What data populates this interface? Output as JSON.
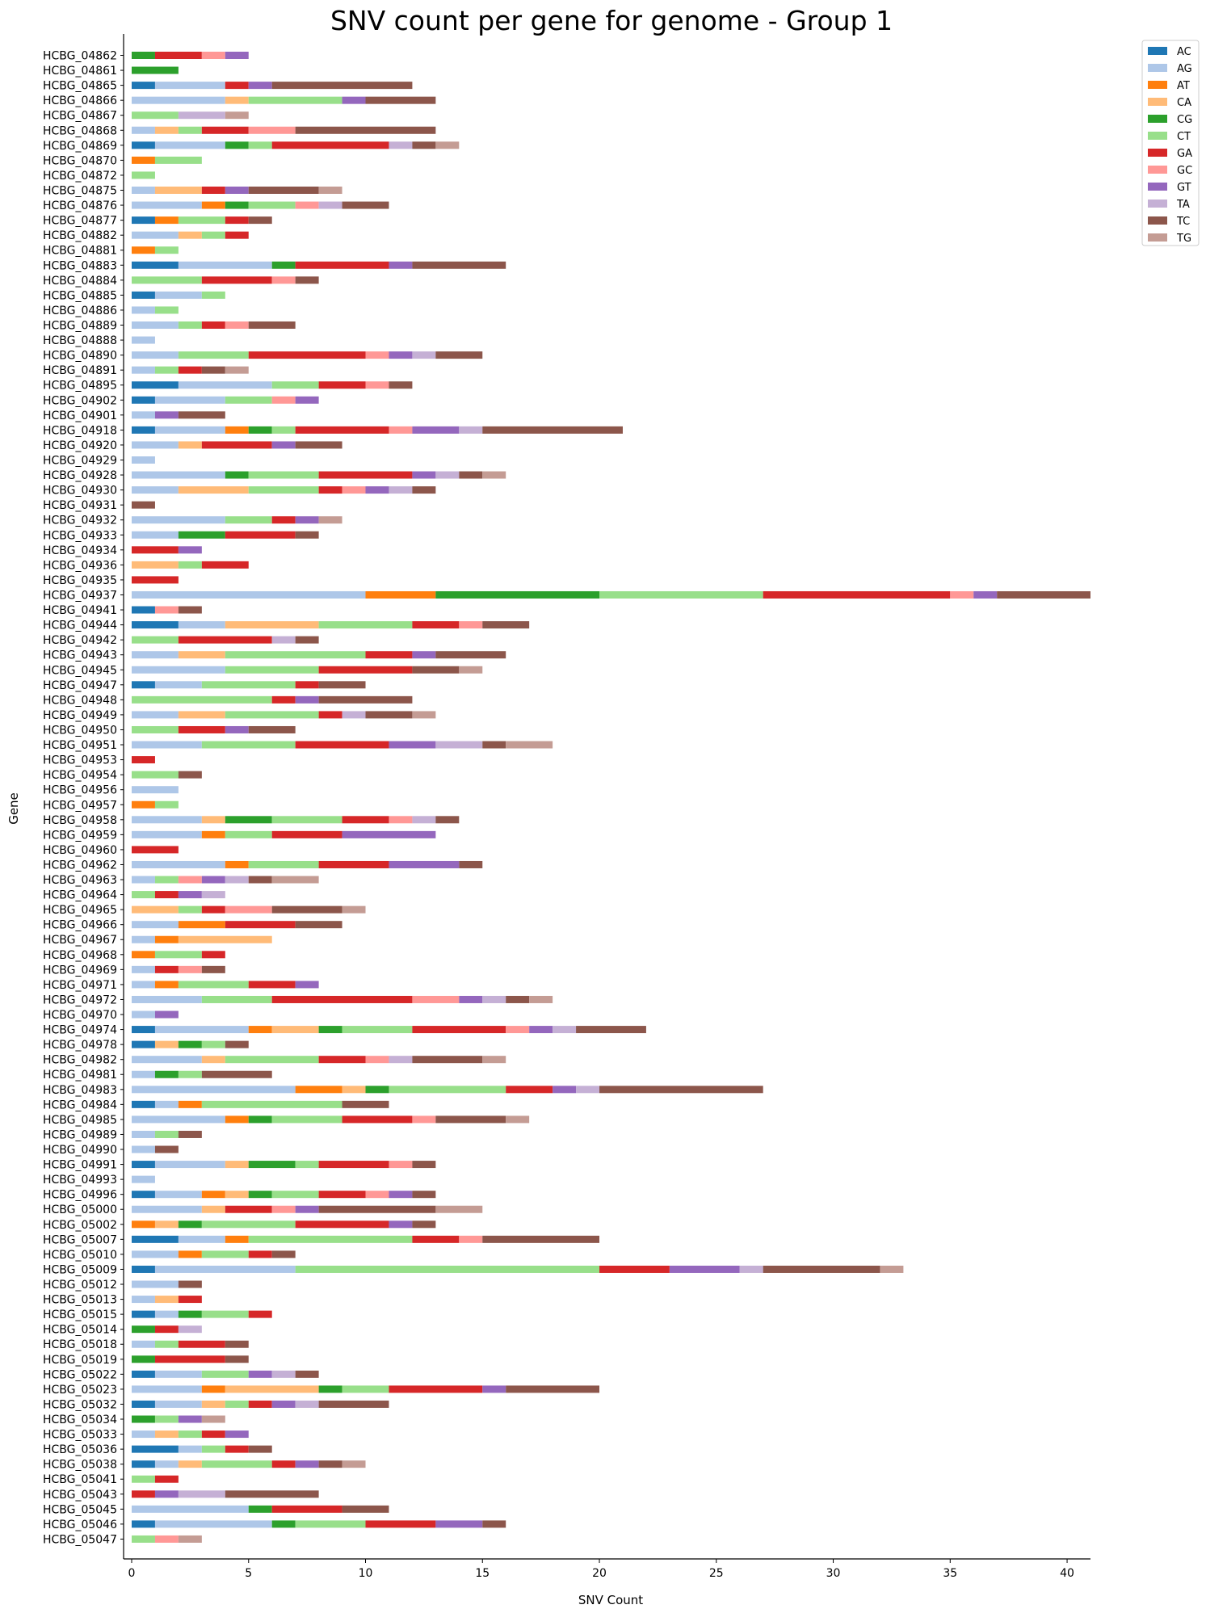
{
  "chart_data": {
    "type": "bar",
    "orientation": "horizontal",
    "stacked": true,
    "title": "SNV count per gene for genome - Group 1",
    "xlabel": "SNV Count",
    "ylabel": "Gene",
    "xlim": [
      0,
      41
    ],
    "xticks": [
      0,
      5,
      10,
      15,
      20,
      25,
      30,
      35,
      40
    ],
    "grid": false,
    "legend_position": "top-right outside",
    "series_names": [
      "AC",
      "AG",
      "AT",
      "CA",
      "CG",
      "CT",
      "GA",
      "GC",
      "GT",
      "TA",
      "TC",
      "TG"
    ],
    "colors": {
      "AC": "#1f77b4",
      "AG": "#aec7e8",
      "AT": "#ff7f0e",
      "CA": "#ffbb78",
      "CG": "#2ca02c",
      "CT": "#98df8a",
      "GA": "#d62728",
      "GC": "#ff9896",
      "GT": "#9467bd",
      "TA": "#c5b0d5",
      "TC": "#8c564b",
      "TG": "#c49c94"
    },
    "genes": [
      {
        "name": "HCBG_04862",
        "counts": {
          "CG": 1,
          "GA": 2,
          "GC": 1,
          "GT": 1
        }
      },
      {
        "name": "HCBG_04861",
        "counts": {
          "CG": 2
        }
      },
      {
        "name": "HCBG_04865",
        "counts": {
          "AC": 1,
          "AG": 3,
          "GA": 1,
          "GT": 1,
          "TC": 6
        }
      },
      {
        "name": "HCBG_04866",
        "counts": {
          "AG": 4,
          "CA": 1,
          "CT": 4,
          "GT": 1,
          "TC": 3
        }
      },
      {
        "name": "HCBG_04867",
        "counts": {
          "CT": 2,
          "TA": 2,
          "TG": 1
        }
      },
      {
        "name": "HCBG_04868",
        "counts": {
          "AG": 1,
          "CA": 1,
          "CT": 1,
          "GA": 2,
          "GC": 2,
          "TC": 6
        }
      },
      {
        "name": "HCBG_04869",
        "counts": {
          "AC": 1,
          "AG": 3,
          "CG": 1,
          "CT": 1,
          "GA": 5,
          "TA": 1,
          "TC": 1,
          "TG": 1
        }
      },
      {
        "name": "HCBG_04870",
        "counts": {
          "AT": 1,
          "CT": 2
        }
      },
      {
        "name": "HCBG_04872",
        "counts": {
          "CT": 1
        }
      },
      {
        "name": "HCBG_04875",
        "counts": {
          "AG": 1,
          "CA": 2,
          "GA": 1,
          "GT": 1,
          "TC": 3,
          "TG": 1
        }
      },
      {
        "name": "HCBG_04876",
        "counts": {
          "AG": 3,
          "AT": 1,
          "CG": 1,
          "CT": 2,
          "GC": 1,
          "TA": 1,
          "TC": 2
        }
      },
      {
        "name": "HCBG_04877",
        "counts": {
          "AC": 1,
          "AT": 1,
          "CT": 2,
          "GA": 1,
          "TC": 1
        }
      },
      {
        "name": "HCBG_04882",
        "counts": {
          "AG": 2,
          "CA": 1,
          "CT": 1,
          "GA": 1
        }
      },
      {
        "name": "HCBG_04881",
        "counts": {
          "AT": 1,
          "CT": 1
        }
      },
      {
        "name": "HCBG_04883",
        "counts": {
          "AC": 2,
          "AG": 4,
          "CG": 1,
          "GA": 4,
          "GT": 1,
          "TC": 4
        }
      },
      {
        "name": "HCBG_04884",
        "counts": {
          "CT": 3,
          "GA": 3,
          "GC": 1,
          "TC": 1
        }
      },
      {
        "name": "HCBG_04885",
        "counts": {
          "AC": 1,
          "AG": 2,
          "CT": 1
        }
      },
      {
        "name": "HCBG_04886",
        "counts": {
          "AG": 1,
          "CT": 1
        }
      },
      {
        "name": "HCBG_04889",
        "counts": {
          "AG": 2,
          "CT": 1,
          "GA": 1,
          "GC": 1,
          "TC": 2
        }
      },
      {
        "name": "HCBG_04888",
        "counts": {
          "AG": 1
        }
      },
      {
        "name": "HCBG_04890",
        "counts": {
          "AG": 2,
          "CT": 3,
          "GA": 5,
          "GC": 1,
          "GT": 1,
          "TA": 1,
          "TC": 2
        }
      },
      {
        "name": "HCBG_04891",
        "counts": {
          "AG": 1,
          "CT": 1,
          "GA": 1,
          "TC": 1,
          "TG": 1
        }
      },
      {
        "name": "HCBG_04895",
        "counts": {
          "AC": 2,
          "AG": 4,
          "CT": 2,
          "GA": 2,
          "GC": 1,
          "TC": 1
        }
      },
      {
        "name": "HCBG_04902",
        "counts": {
          "AC": 1,
          "AG": 3,
          "CT": 2,
          "GC": 1,
          "GT": 1
        }
      },
      {
        "name": "HCBG_04901",
        "counts": {
          "AG": 1,
          "GT": 1,
          "TC": 2
        }
      },
      {
        "name": "HCBG_04918",
        "counts": {
          "AC": 1,
          "AG": 3,
          "AT": 1,
          "CG": 1,
          "CT": 1,
          "GA": 4,
          "GC": 1,
          "GT": 2,
          "TA": 1,
          "TC": 6
        }
      },
      {
        "name": "HCBG_04920",
        "counts": {
          "AG": 2,
          "CA": 1,
          "GA": 3,
          "GT": 1,
          "TC": 2
        }
      },
      {
        "name": "HCBG_04929",
        "counts": {
          "AG": 1
        }
      },
      {
        "name": "HCBG_04928",
        "counts": {
          "AG": 4,
          "CG": 1,
          "CT": 3,
          "GA": 4,
          "GT": 1,
          "TA": 1,
          "TC": 1,
          "TG": 1
        }
      },
      {
        "name": "HCBG_04930",
        "counts": {
          "AG": 2,
          "CA": 3,
          "CT": 3,
          "GA": 1,
          "GC": 1,
          "GT": 1,
          "TA": 1,
          "TC": 1
        }
      },
      {
        "name": "HCBG_04931",
        "counts": {
          "TC": 1
        }
      },
      {
        "name": "HCBG_04932",
        "counts": {
          "AG": 4,
          "CT": 2,
          "GA": 1,
          "GT": 1,
          "TG": 1
        }
      },
      {
        "name": "HCBG_04933",
        "counts": {
          "AG": 2,
          "CG": 2,
          "GA": 3,
          "TC": 1
        }
      },
      {
        "name": "HCBG_04934",
        "counts": {
          "GA": 2,
          "GT": 1
        }
      },
      {
        "name": "HCBG_04936",
        "counts": {
          "CA": 2,
          "CT": 1,
          "GA": 2
        }
      },
      {
        "name": "HCBG_04935",
        "counts": {
          "GA": 2
        }
      },
      {
        "name": "HCBG_04937",
        "counts": {
          "AG": 10,
          "AT": 3,
          "CG": 7,
          "CT": 7,
          "GA": 8,
          "GC": 1,
          "GT": 1,
          "TC": 4
        }
      },
      {
        "name": "HCBG_04941",
        "counts": {
          "AC": 1,
          "GC": 1,
          "TC": 1
        }
      },
      {
        "name": "HCBG_04944",
        "counts": {
          "AC": 2,
          "AG": 2,
          "CA": 4,
          "CT": 4,
          "GA": 2,
          "GC": 1,
          "TC": 2
        }
      },
      {
        "name": "HCBG_04942",
        "counts": {
          "CT": 2,
          "GA": 4,
          "TA": 1,
          "TC": 1
        }
      },
      {
        "name": "HCBG_04943",
        "counts": {
          "AG": 2,
          "CA": 2,
          "CT": 6,
          "GA": 2,
          "GT": 1,
          "TC": 3
        }
      },
      {
        "name": "HCBG_04945",
        "counts": {
          "AG": 4,
          "CT": 4,
          "GA": 4,
          "TC": 2,
          "TG": 1
        }
      },
      {
        "name": "HCBG_04947",
        "counts": {
          "AC": 1,
          "AG": 2,
          "CT": 4,
          "GA": 1,
          "TC": 2
        }
      },
      {
        "name": "HCBG_04948",
        "counts": {
          "CT": 6,
          "GA": 1,
          "GT": 1,
          "TC": 4
        }
      },
      {
        "name": "HCBG_04949",
        "counts": {
          "AG": 2,
          "CA": 2,
          "CT": 4,
          "GA": 1,
          "TA": 1,
          "TC": 2,
          "TG": 1
        }
      },
      {
        "name": "HCBG_04950",
        "counts": {
          "CT": 2,
          "GA": 2,
          "GT": 1,
          "TC": 2
        }
      },
      {
        "name": "HCBG_04951",
        "counts": {
          "AG": 3,
          "CT": 4,
          "GA": 4,
          "GT": 2,
          "TA": 2,
          "TC": 1,
          "TG": 2
        }
      },
      {
        "name": "HCBG_04953",
        "counts": {
          "GA": 1
        }
      },
      {
        "name": "HCBG_04954",
        "counts": {
          "CT": 2,
          "TC": 1
        }
      },
      {
        "name": "HCBG_04956",
        "counts": {
          "AG": 2
        }
      },
      {
        "name": "HCBG_04957",
        "counts": {
          "AT": 1,
          "CT": 1
        }
      },
      {
        "name": "HCBG_04958",
        "counts": {
          "AG": 3,
          "CA": 1,
          "CG": 2,
          "CT": 3,
          "GA": 2,
          "GC": 1,
          "TA": 1,
          "TC": 1
        }
      },
      {
        "name": "HCBG_04959",
        "counts": {
          "AG": 3,
          "AT": 1,
          "CT": 2,
          "GA": 3,
          "GT": 4
        }
      },
      {
        "name": "HCBG_04960",
        "counts": {
          "GA": 2
        }
      },
      {
        "name": "HCBG_04962",
        "counts": {
          "AG": 4,
          "AT": 1,
          "CT": 3,
          "GA": 3,
          "GT": 3,
          "TC": 1
        }
      },
      {
        "name": "HCBG_04963",
        "counts": {
          "AG": 1,
          "CT": 1,
          "GC": 1,
          "GT": 1,
          "TA": 1,
          "TC": 1,
          "TG": 2
        }
      },
      {
        "name": "HCBG_04964",
        "counts": {
          "CT": 1,
          "GA": 1,
          "GT": 1,
          "TA": 1
        }
      },
      {
        "name": "HCBG_04965",
        "counts": {
          "CA": 2,
          "CT": 1,
          "GA": 1,
          "GC": 2,
          "TC": 3,
          "TG": 1
        }
      },
      {
        "name": "HCBG_04966",
        "counts": {
          "AG": 2,
          "AT": 2,
          "GA": 3,
          "TC": 2
        }
      },
      {
        "name": "HCBG_04967",
        "counts": {
          "AG": 1,
          "AT": 1,
          "CA": 4
        }
      },
      {
        "name": "HCBG_04968",
        "counts": {
          "AT": 1,
          "CT": 2,
          "GA": 1
        }
      },
      {
        "name": "HCBG_04969",
        "counts": {
          "AG": 1,
          "GA": 1,
          "GC": 1,
          "TC": 1
        }
      },
      {
        "name": "HCBG_04971",
        "counts": {
          "AG": 1,
          "AT": 1,
          "CT": 3,
          "GA": 2,
          "GT": 1
        }
      },
      {
        "name": "HCBG_04972",
        "counts": {
          "AG": 3,
          "CT": 3,
          "GA": 6,
          "GC": 2,
          "GT": 1,
          "TA": 1,
          "TC": 1,
          "TG": 1
        }
      },
      {
        "name": "HCBG_04970",
        "counts": {
          "AG": 1,
          "GT": 1
        }
      },
      {
        "name": "HCBG_04974",
        "counts": {
          "AC": 1,
          "AG": 4,
          "AT": 1,
          "CA": 2,
          "CG": 1,
          "CT": 3,
          "GA": 4,
          "GC": 1,
          "GT": 1,
          "TA": 1,
          "TC": 3
        }
      },
      {
        "name": "HCBG_04978",
        "counts": {
          "AC": 1,
          "CA": 1,
          "CG": 1,
          "CT": 1,
          "TC": 1
        }
      },
      {
        "name": "HCBG_04982",
        "counts": {
          "AG": 3,
          "CA": 1,
          "CT": 4,
          "GA": 2,
          "GC": 1,
          "TA": 1,
          "TC": 3,
          "TG": 1
        }
      },
      {
        "name": "HCBG_04981",
        "counts": {
          "AG": 1,
          "CG": 1,
          "CT": 1,
          "TC": 3
        }
      },
      {
        "name": "HCBG_04983",
        "counts": {
          "AG": 7,
          "AT": 2,
          "CA": 1,
          "CG": 1,
          "CT": 5,
          "GA": 2,
          "GT": 1,
          "TA": 1,
          "TC": 7
        }
      },
      {
        "name": "HCBG_04984",
        "counts": {
          "AC": 1,
          "AG": 1,
          "AT": 1,
          "CT": 6,
          "TC": 2
        }
      },
      {
        "name": "HCBG_04985",
        "counts": {
          "AG": 4,
          "AT": 1,
          "CG": 1,
          "CT": 3,
          "GA": 3,
          "GC": 1,
          "TC": 3,
          "TG": 1
        }
      },
      {
        "name": "HCBG_04989",
        "counts": {
          "AG": 1,
          "CT": 1,
          "TC": 1
        }
      },
      {
        "name": "HCBG_04990",
        "counts": {
          "AG": 1,
          "TC": 1
        }
      },
      {
        "name": "HCBG_04991",
        "counts": {
          "AC": 1,
          "AG": 3,
          "CA": 1,
          "CG": 2,
          "CT": 1,
          "GA": 3,
          "GC": 1,
          "TC": 1
        }
      },
      {
        "name": "HCBG_04993",
        "counts": {
          "AG": 1
        }
      },
      {
        "name": "HCBG_04996",
        "counts": {
          "AC": 1,
          "AG": 2,
          "AT": 1,
          "CA": 1,
          "CG": 1,
          "CT": 2,
          "GA": 2,
          "GC": 1,
          "GT": 1,
          "TC": 1
        }
      },
      {
        "name": "HCBG_05000",
        "counts": {
          "AG": 3,
          "CA": 1,
          "GA": 2,
          "GC": 1,
          "GT": 1,
          "TC": 5,
          "TG": 2
        }
      },
      {
        "name": "HCBG_05002",
        "counts": {
          "AT": 1,
          "CA": 1,
          "CG": 1,
          "CT": 4,
          "GA": 4,
          "GT": 1,
          "TC": 1
        }
      },
      {
        "name": "HCBG_05007",
        "counts": {
          "AC": 2,
          "AG": 2,
          "AT": 1,
          "CT": 7,
          "GA": 2,
          "GC": 1,
          "TC": 5
        }
      },
      {
        "name": "HCBG_05010",
        "counts": {
          "AG": 2,
          "AT": 1,
          "CT": 2,
          "GA": 1,
          "TC": 1
        }
      },
      {
        "name": "HCBG_05009",
        "counts": {
          "AC": 1,
          "AG": 6,
          "CT": 13,
          "GA": 3,
          "GT": 3,
          "TA": 1,
          "TC": 5,
          "TG": 1
        }
      },
      {
        "name": "HCBG_05012",
        "counts": {
          "AG": 2,
          "TC": 1
        }
      },
      {
        "name": "HCBG_05013",
        "counts": {
          "AG": 1,
          "CA": 1,
          "GA": 1
        }
      },
      {
        "name": "HCBG_05015",
        "counts": {
          "AC": 1,
          "AG": 1,
          "CG": 1,
          "CT": 2,
          "GA": 1
        }
      },
      {
        "name": "HCBG_05014",
        "counts": {
          "CG": 1,
          "GA": 1,
          "TA": 1
        }
      },
      {
        "name": "HCBG_05018",
        "counts": {
          "AG": 1,
          "CT": 1,
          "GA": 2,
          "TC": 1
        }
      },
      {
        "name": "HCBG_05019",
        "counts": {
          "CG": 1,
          "GA": 3,
          "TC": 1
        }
      },
      {
        "name": "HCBG_05022",
        "counts": {
          "AC": 1,
          "AG": 2,
          "CT": 2,
          "GT": 1,
          "TA": 1,
          "TC": 1
        }
      },
      {
        "name": "HCBG_05023",
        "counts": {
          "AG": 3,
          "AT": 1,
          "CA": 4,
          "CG": 1,
          "CT": 2,
          "GA": 4,
          "GT": 1,
          "TC": 4
        }
      },
      {
        "name": "HCBG_05032",
        "counts": {
          "AC": 1,
          "AG": 2,
          "CA": 1,
          "CT": 1,
          "GA": 1,
          "GT": 1,
          "TA": 1,
          "TC": 3
        }
      },
      {
        "name": "HCBG_05034",
        "counts": {
          "CG": 1,
          "CT": 1,
          "GT": 1,
          "TG": 1
        }
      },
      {
        "name": "HCBG_05033",
        "counts": {
          "AG": 1,
          "CA": 1,
          "CT": 1,
          "GA": 1,
          "GT": 1
        }
      },
      {
        "name": "HCBG_05036",
        "counts": {
          "AC": 2,
          "AG": 1,
          "CT": 1,
          "GA": 1,
          "TC": 1
        }
      },
      {
        "name": "HCBG_05038",
        "counts": {
          "AC": 1,
          "AG": 1,
          "CA": 1,
          "CT": 3,
          "GA": 1,
          "GT": 1,
          "TC": 1,
          "TG": 1
        }
      },
      {
        "name": "HCBG_05041",
        "counts": {
          "CT": 1,
          "GA": 1
        }
      },
      {
        "name": "HCBG_05043",
        "counts": {
          "GA": 1,
          "GT": 1,
          "TA": 2,
          "TC": 4
        }
      },
      {
        "name": "HCBG_05045",
        "counts": {
          "AG": 5,
          "CG": 1,
          "GA": 3,
          "TC": 2
        }
      },
      {
        "name": "HCBG_05046",
        "counts": {
          "AC": 1,
          "AG": 5,
          "CG": 1,
          "CT": 3,
          "GA": 3,
          "GT": 2,
          "TC": 1
        }
      },
      {
        "name": "HCBG_05047",
        "counts": {
          "CT": 1,
          "GC": 1,
          "TG": 1
        }
      }
    ]
  }
}
